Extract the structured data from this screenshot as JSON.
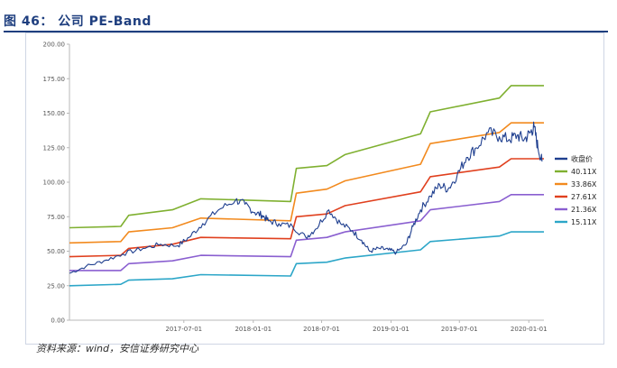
{
  "figure": {
    "title": "图 46： 公司 PE-Band",
    "source": "资料来源：wind，安信证券研究中心"
  },
  "chart_data": {
    "type": "line",
    "title": "",
    "xlabel": "",
    "ylabel": "",
    "ylim": [
      0,
      200
    ],
    "yticks": [
      0,
      25,
      50,
      75,
      100,
      125,
      150,
      175,
      200
    ],
    "ytick_labels": [
      "0.00",
      "25.00",
      "50.00",
      "75.00",
      "100.00",
      "125.00",
      "150.00",
      "175.00",
      "200.00"
    ],
    "xlim": [
      "2016-09-01",
      "2020-02-10"
    ],
    "xticks": [
      "2017-07-01",
      "2018-01-01",
      "2018-07-01",
      "2019-01-01",
      "2019-07-01",
      "2020-01-01"
    ],
    "grid": false,
    "legend_position": "right",
    "series": [
      {
        "name": "收盘价",
        "color": "#1f3f8f",
        "x": [
          "2016-09-01",
          "2016-10-15",
          "2016-12-01",
          "2017-01-20",
          "2017-03-15",
          "2017-05-01",
          "2017-06-15",
          "2017-07-15",
          "2017-08-20",
          "2017-10-01",
          "2017-11-15",
          "2017-12-10",
          "2018-01-05",
          "2018-01-25",
          "2018-02-10",
          "2018-03-10",
          "2018-04-15",
          "2018-05-20",
          "2018-06-15",
          "2018-07-20",
          "2018-08-20",
          "2018-09-20",
          "2018-10-15",
          "2018-11-05",
          "2018-12-01",
          "2018-12-25",
          "2019-01-15",
          "2019-02-10",
          "2019-02-28",
          "2019-03-20",
          "2019-04-15",
          "2019-05-10",
          "2019-06-01",
          "2019-06-25",
          "2019-07-20",
          "2019-08-15",
          "2019-09-15",
          "2019-10-15",
          "2019-11-10",
          "2019-12-01",
          "2019-12-20",
          "2020-01-05",
          "2020-01-15",
          "2020-01-25",
          "2020-02-05"
        ],
        "values": [
          34,
          39,
          43,
          48,
          52,
          55,
          54,
          60,
          70,
          80,
          87,
          84,
          78,
          76,
          72,
          70,
          68,
          60,
          66,
          80,
          70,
          65,
          58,
          50,
          52,
          51,
          49,
          55,
          68,
          80,
          90,
          98,
          95,
          105,
          118,
          125,
          136,
          133,
          131,
          134,
          131,
          136,
          140,
          125,
          115
        ]
      },
      {
        "name": "40.11X",
        "color": "#7fb030",
        "x": [
          "2016-09-01",
          "2017-01-15",
          "2017-02-05",
          "2017-06-01",
          "2017-08-15",
          "2018-04-10",
          "2018-04-25",
          "2018-07-15",
          "2018-09-01",
          "2019-03-20",
          "2019-04-15",
          "2019-10-15",
          "2019-11-15",
          "2020-02-10"
        ],
        "values": [
          67,
          68,
          76,
          80,
          88,
          86,
          110,
          112,
          120,
          135,
          151,
          161,
          170,
          170
        ]
      },
      {
        "name": "33.86X",
        "color": "#f28a1e",
        "x": [
          "2016-09-01",
          "2017-01-15",
          "2017-02-05",
          "2017-06-01",
          "2017-08-15",
          "2018-04-10",
          "2018-04-25",
          "2018-07-15",
          "2018-09-01",
          "2019-03-20",
          "2019-04-15",
          "2019-10-15",
          "2019-11-15",
          "2020-02-10"
        ],
        "values": [
          56,
          57,
          64,
          67,
          74,
          72,
          92,
          95,
          101,
          113,
          128,
          136,
          143,
          143
        ]
      },
      {
        "name": "27.61X",
        "color": "#e0401e",
        "x": [
          "2016-09-01",
          "2017-01-15",
          "2017-02-05",
          "2017-06-01",
          "2017-08-15",
          "2018-04-10",
          "2018-04-25",
          "2018-07-15",
          "2018-09-01",
          "2019-03-20",
          "2019-04-15",
          "2019-10-15",
          "2019-11-15",
          "2020-02-10"
        ],
        "values": [
          46,
          47,
          52,
          55,
          60,
          59,
          75,
          77,
          83,
          93,
          104,
          111,
          117,
          117
        ]
      },
      {
        "name": "21.36X",
        "color": "#8a5fd0",
        "x": [
          "2016-09-01",
          "2017-01-15",
          "2017-02-05",
          "2017-06-01",
          "2017-08-15",
          "2018-04-10",
          "2018-04-25",
          "2018-07-15",
          "2018-09-01",
          "2019-03-20",
          "2019-04-15",
          "2019-10-15",
          "2019-11-15",
          "2020-02-10"
        ],
        "values": [
          36,
          36,
          41,
          43,
          47,
          46,
          58,
          60,
          64,
          72,
          80,
          86,
          91,
          91
        ]
      },
      {
        "name": "15.11X",
        "color": "#2ca6c8",
        "x": [
          "2016-09-01",
          "2017-01-15",
          "2017-02-05",
          "2017-06-01",
          "2017-08-15",
          "2018-04-10",
          "2018-04-25",
          "2018-07-15",
          "2018-09-01",
          "2019-03-20",
          "2019-04-15",
          "2019-10-15",
          "2019-11-15",
          "2020-02-10"
        ],
        "values": [
          25,
          26,
          29,
          30,
          33,
          32,
          41,
          42,
          45,
          51,
          57,
          61,
          64,
          64
        ]
      }
    ]
  }
}
